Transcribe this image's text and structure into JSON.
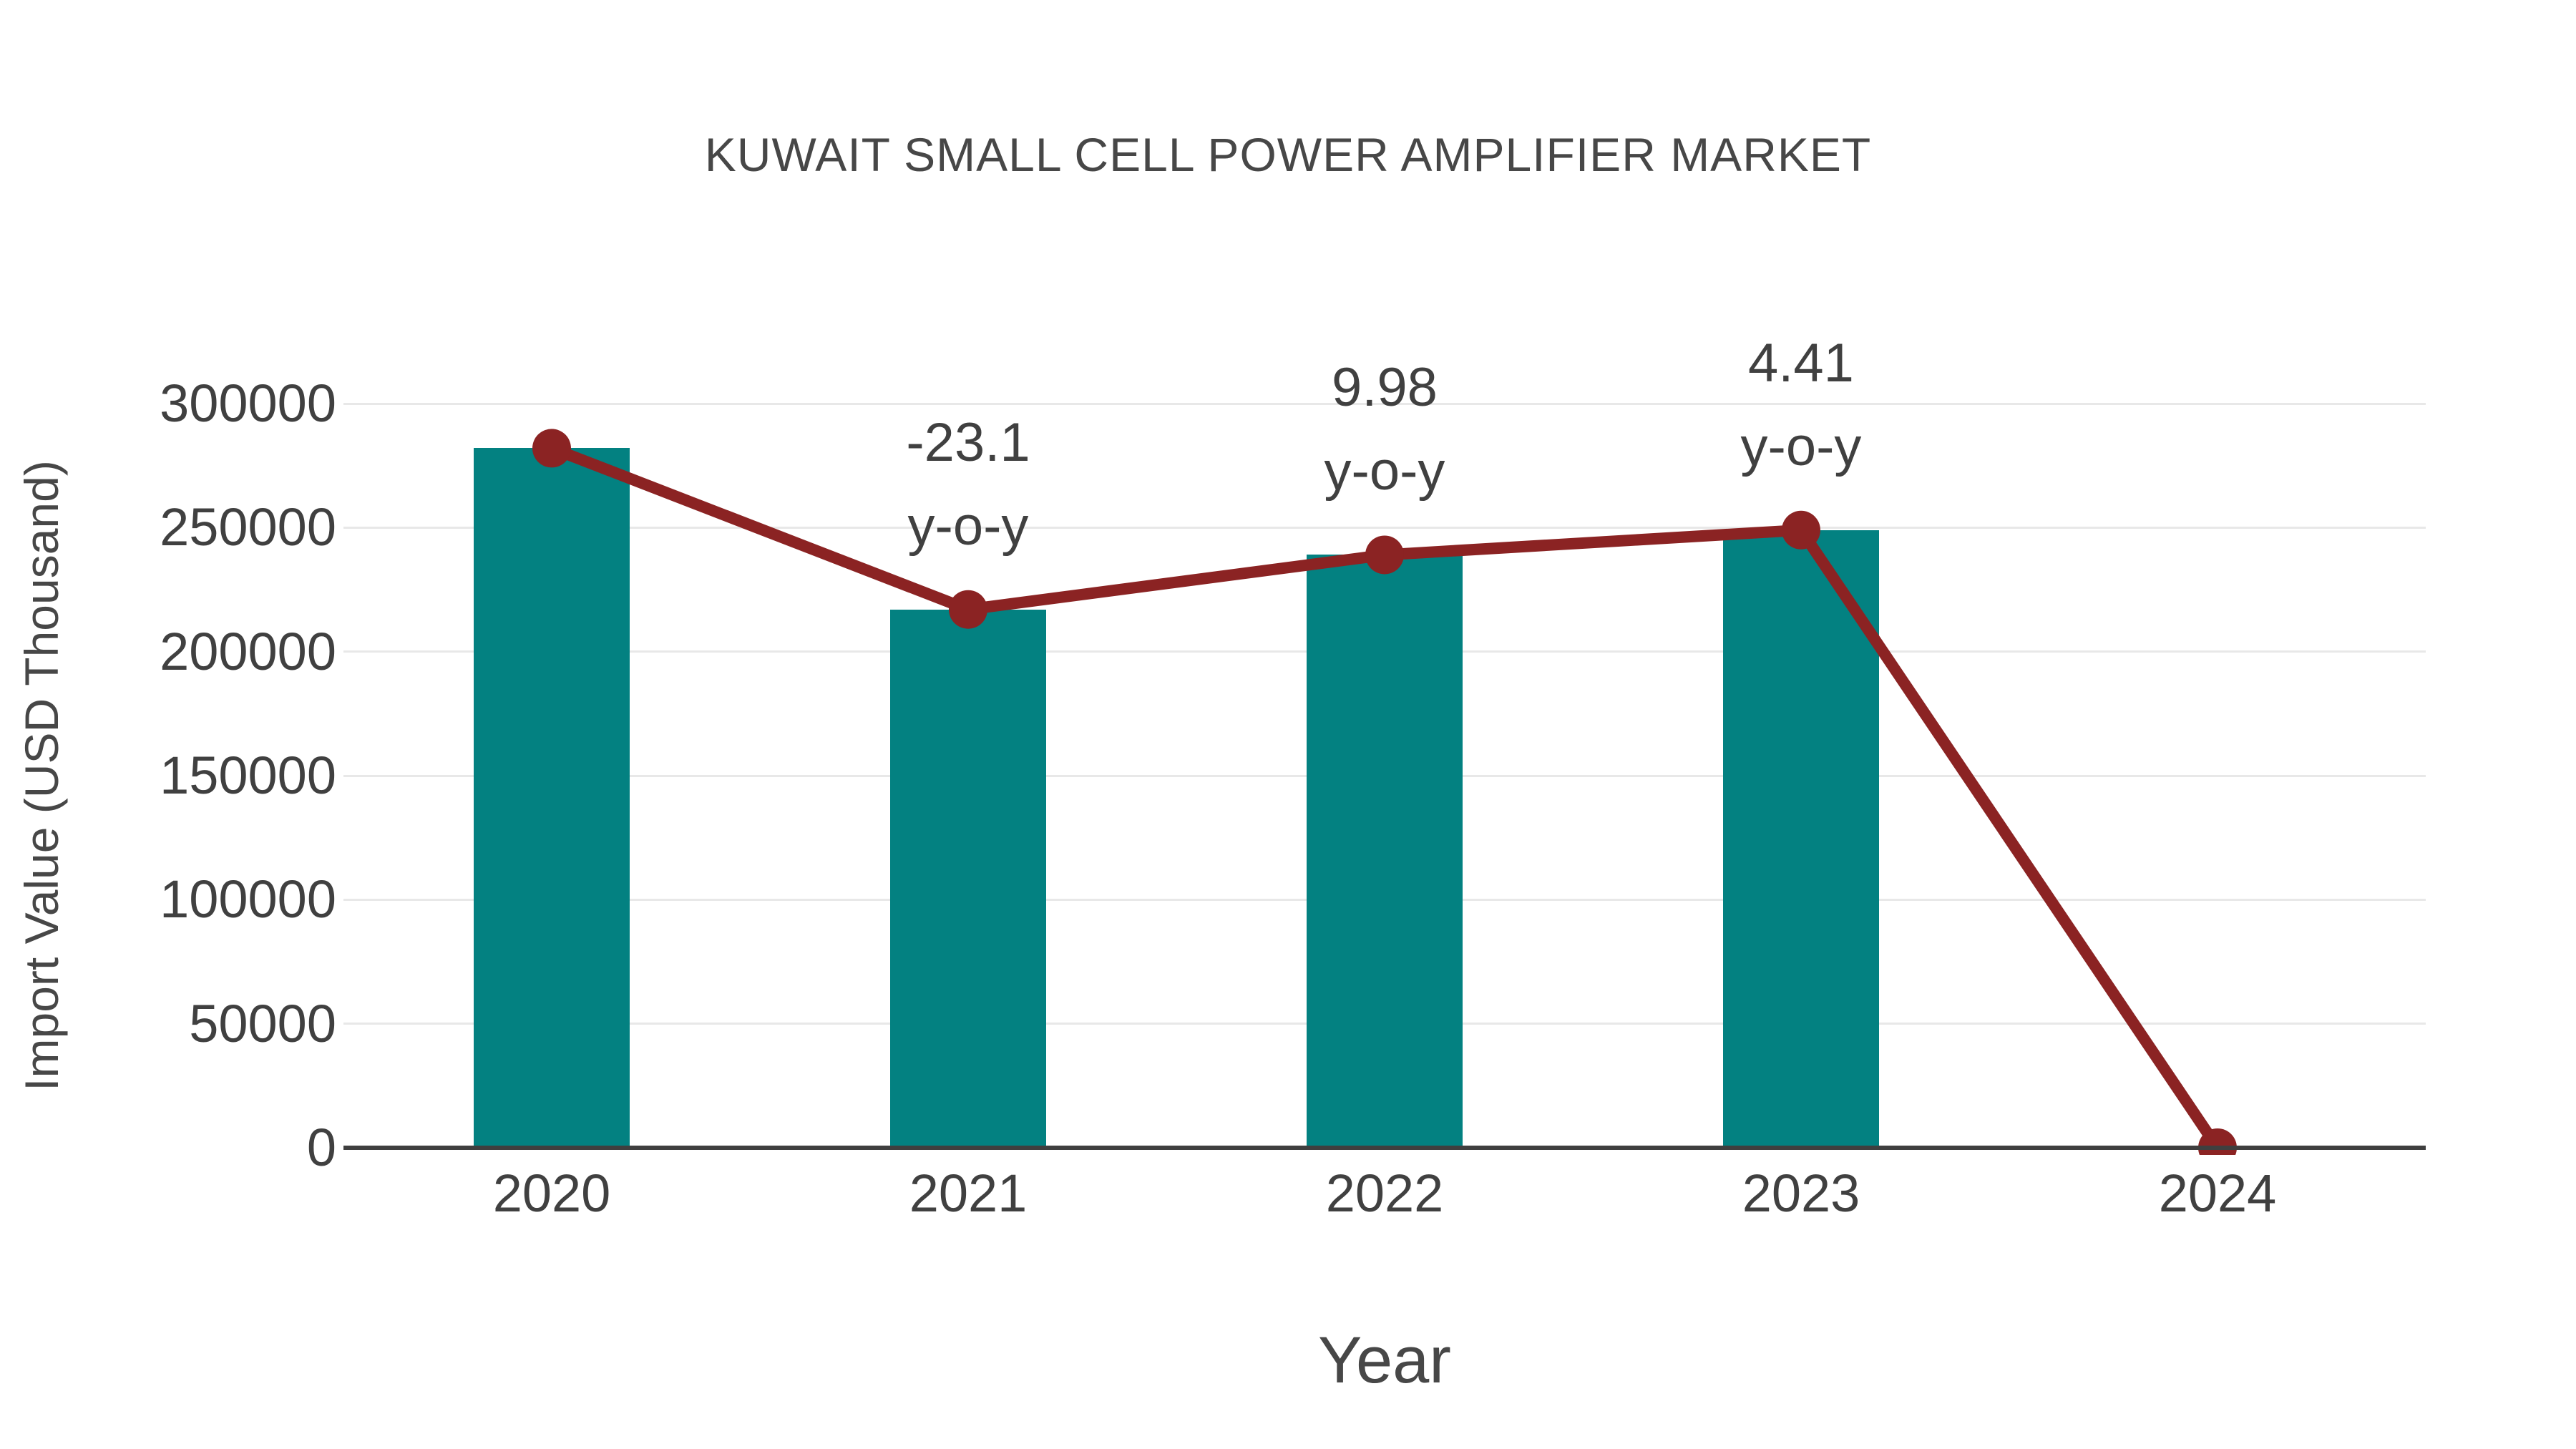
{
  "title": "KUWAIT SMALL CELL POWER AMPLIFIER MARKET",
  "chart_data": {
    "type": "bar",
    "title": "KUWAIT SMALL CELL POWER AMPLIFIER MARKET",
    "xlabel": "Year",
    "ylabel": "Import Value (USD Thousand)",
    "categories": [
      "2020",
      "2021",
      "2022",
      "2023",
      "2024"
    ],
    "series": [
      {
        "name": "Import Value bars",
        "type": "bar",
        "values": [
          282000,
          217000,
          239000,
          249000,
          0
        ]
      },
      {
        "name": "Import Value trend line",
        "type": "line",
        "values": [
          282000,
          217000,
          239000,
          249000,
          0
        ]
      }
    ],
    "annotations": [
      {
        "category": "2021",
        "value_label": "-23.1",
        "suffix_label": "y-o-y"
      },
      {
        "category": "2022",
        "value_label": "9.98",
        "suffix_label": "y-o-y"
      },
      {
        "category": "2023",
        "value_label": "4.41",
        "suffix_label": "y-o-y"
      }
    ],
    "ylim": [
      0,
      300000
    ],
    "yticks": [
      0,
      50000,
      100000,
      150000,
      200000,
      250000,
      300000
    ],
    "ytick_labels": [
      "0",
      "50000",
      "100000",
      "150000",
      "200000",
      "250000",
      "300000"
    ],
    "grid": "horizontal-only",
    "legend": "none"
  },
  "colors": {
    "bar": "#038181",
    "line": "#8b2323",
    "marker": "#8b2323",
    "gridline": "#e8e8e8",
    "axis_line": "#3f3f3f",
    "tick_text": "#404040",
    "title_text": "#474747",
    "background": "#ffffff"
  }
}
